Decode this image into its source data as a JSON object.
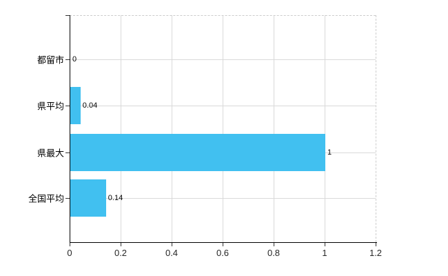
{
  "chart_data": {
    "type": "bar",
    "orientation": "horizontal",
    "title": "",
    "categories": [
      "都留市",
      "県平均",
      "県最大",
      "全国平均"
    ],
    "values": [
      0,
      0.04,
      1,
      0.14
    ],
    "value_labels": [
      "0",
      "0.04",
      "1",
      "0.14"
    ],
    "xlim": [
      0,
      1.2
    ],
    "x_ticks": [
      0,
      0.2,
      0.4,
      0.6,
      0.8,
      1,
      1.2
    ],
    "x_tick_labels": [
      "0",
      "0.2",
      "0.4",
      "0.6",
      "0.8",
      "1",
      "1.2"
    ],
    "grid": true,
    "legend": false,
    "colors": {
      "bar": "#41C0F0",
      "axis": "#000000",
      "gridline": "#D9D9D9",
      "border_dashed": "#CCCCCC",
      "label": "#000000",
      "background": "#FFFFFF"
    }
  }
}
